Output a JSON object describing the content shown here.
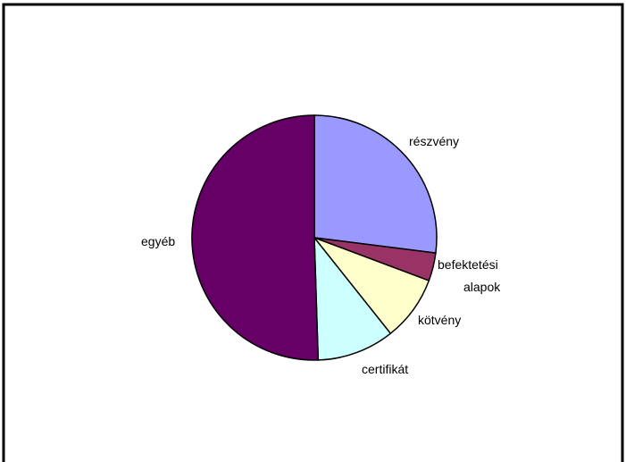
{
  "chart_data": {
    "type": "pie",
    "title": "",
    "slices": [
      {
        "label": "részvény",
        "value": 27.0,
        "color": "#9999ff"
      },
      {
        "label": "befektetési alapok",
        "value": 3.7,
        "color": "#993366"
      },
      {
        "label": "kötvény",
        "value": 8.6,
        "color": "#ffffcc"
      },
      {
        "label": "certifikát",
        "value": 10.2,
        "color": "#ccffff"
      },
      {
        "label": "egyéb",
        "value": 50.5,
        "color": "#660066"
      }
    ]
  }
}
